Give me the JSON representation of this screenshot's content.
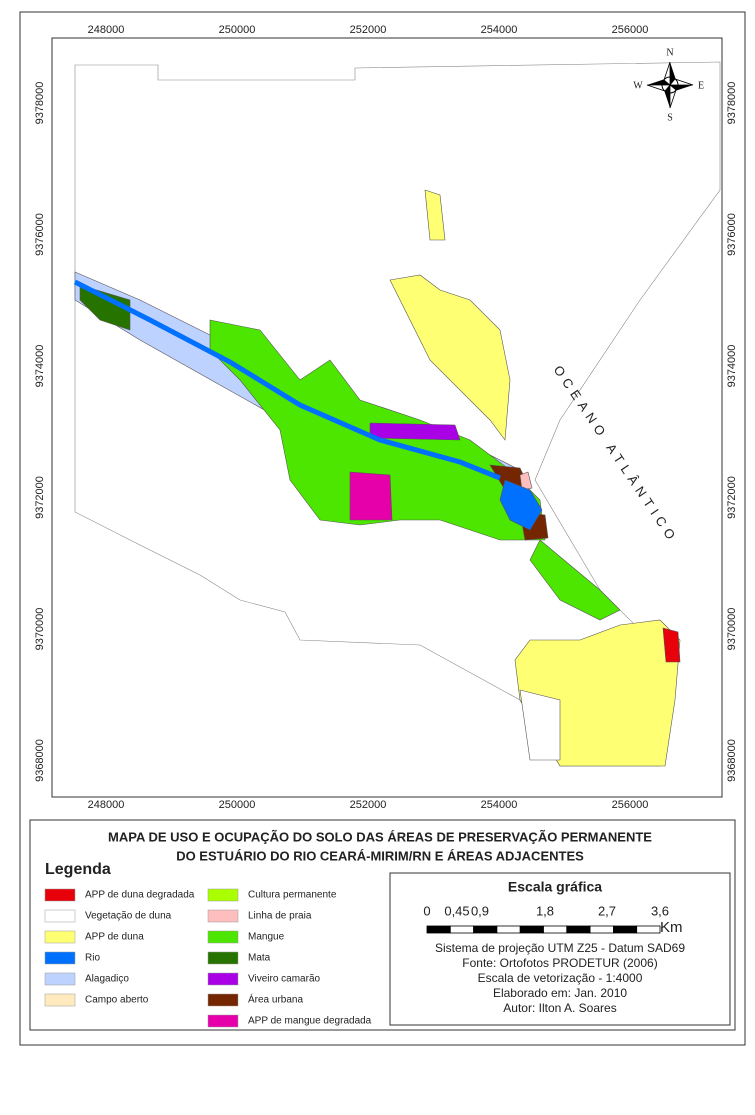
{
  "map": {
    "x_ticks": [
      248000,
      250000,
      252000,
      254000,
      256000
    ],
    "y_ticks": [
      9378000,
      9376000,
      9374000,
      9372000,
      9370000,
      9368000
    ],
    "compass": {
      "n": "N",
      "s": "S",
      "e": "E",
      "w": "W"
    },
    "ocean_label": "OCEANO ATLÂNTICO"
  },
  "title": [
    "MAPA DE USO E OCUPAÇÃO DO SOLO DAS ÁREAS DE PRESERVAÇÃO PERMANENTE",
    "DO ESTUÁRIO DO RIO CEARÁ-MIRIM/RN E ÁREAS ADJACENTES"
  ],
  "legend": {
    "title": "Legenda",
    "items": [
      {
        "label": "APP de duna degradada",
        "color": "#e8000b"
      },
      {
        "label": "Vegetação de duna",
        "color": "#ffffff"
      },
      {
        "label": "APP de duna",
        "color": "#ffff73"
      },
      {
        "label": "Rio",
        "color": "#0070ff"
      },
      {
        "label": "Alagadiço",
        "color": "#bed2ff"
      },
      {
        "label": "Campo aberto",
        "color": "#ffebbe"
      },
      {
        "label": "Cultura permanente",
        "color": "#aaff00"
      },
      {
        "label": "Linha de praia",
        "color": "#ffbebe"
      },
      {
        "label": "Mangue",
        "color": "#4ce600"
      },
      {
        "label": "Mata",
        "color": "#267300"
      },
      {
        "label": "Viveiro camarão",
        "color": "#a900e6"
      },
      {
        "label": "Área urbana",
        "color": "#732600"
      },
      {
        "label": "APP de mangue degradada",
        "color": "#e600a9"
      }
    ]
  },
  "scale": {
    "title": "Escala gráfica",
    "labels": [
      "0",
      "0,45",
      "0,9",
      "1,8",
      "2,7",
      "3,6"
    ],
    "unit": "Km",
    "notes": [
      "Sistema de projeção UTM Z25 - Datum SAD69",
      "Fonte: Ortofotos PRODETUR (2006)",
      "Escala de vetorização - 1:4000",
      "Elaborado em: Jan. 2010",
      "Autor: Ilton A. Soares"
    ]
  }
}
